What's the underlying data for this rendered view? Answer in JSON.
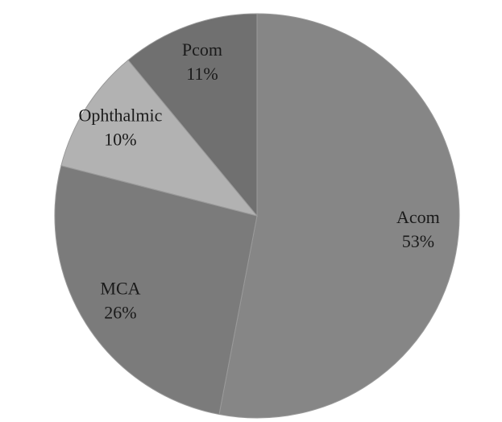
{
  "chart_data": {
    "type": "pie",
    "categories": [
      "Acom",
      "MCA",
      "Ophthalmic",
      "Pcom"
    ],
    "values": [
      53,
      26,
      10,
      11
    ],
    "value_labels": [
      "53%",
      "26%",
      "10%",
      "11%"
    ],
    "colors": [
      "#868686",
      "#7b7b7b",
      "#b2b2b2",
      "#707070"
    ]
  }
}
